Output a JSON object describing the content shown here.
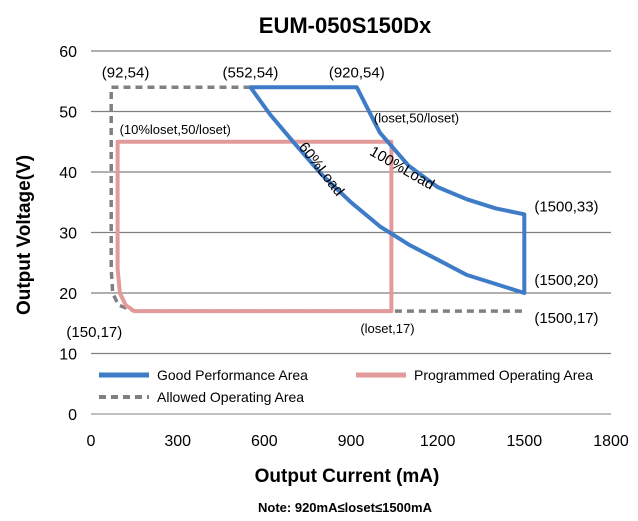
{
  "chart_data": {
    "type": "line",
    "title": "EUM-050S150Dx",
    "xlabel": "Output Current (mA)",
    "ylabel": "Output Voltage(V)",
    "xlim": [
      0,
      1800
    ],
    "ylim": [
      0,
      60
    ],
    "x_ticks": [
      0,
      300,
      600,
      900,
      1200,
      1500,
      1800
    ],
    "y_ticks": [
      0,
      10,
      20,
      30,
      40,
      50,
      60
    ],
    "grid": "horizontal",
    "legend_position": "bottom",
    "series": [
      {
        "name": "Good Performance Area",
        "color": "#3f7cc7",
        "style": "solid",
        "points": [
          [
            552,
            54
          ],
          [
            920,
            54
          ],
          [
            1000,
            46.5
          ],
          [
            1100,
            41
          ],
          [
            1200,
            37.5
          ],
          [
            1300,
            35.5
          ],
          [
            1400,
            34
          ],
          [
            1500,
            33
          ],
          [
            1500,
            20
          ],
          [
            1400,
            21.5
          ],
          [
            1300,
            23
          ],
          [
            1200,
            25.5
          ],
          [
            1100,
            28
          ],
          [
            1000,
            31
          ],
          [
            900,
            35
          ],
          [
            800,
            39.5
          ],
          [
            700,
            45
          ],
          [
            620,
            49.5
          ],
          [
            552,
            54
          ]
        ]
      },
      {
        "name": "Programmed Operating Area",
        "color": "#e29a9a",
        "style": "solid",
        "points": [
          [
            92,
            45
          ],
          [
            1040,
            45
          ],
          [
            1040,
            17
          ],
          [
            150,
            17
          ],
          [
            120,
            18
          ],
          [
            100,
            20
          ],
          [
            92,
            24
          ],
          [
            92,
            45
          ]
        ]
      },
      {
        "name": "Allowed Operating Area",
        "color": "#808080",
        "style": "dashed",
        "points": [
          [
            552,
            54
          ],
          [
            92,
            54
          ],
          [
            70,
            54
          ],
          [
            70,
            24
          ],
          [
            75,
            20
          ],
          [
            95,
            18
          ],
          [
            150,
            17
          ],
          [
            1500,
            17
          ]
        ]
      }
    ],
    "annotations": [
      {
        "text": "(92,54)",
        "x": 92,
        "y": 54
      },
      {
        "text": "(552,54)",
        "x": 552,
        "y": 54
      },
      {
        "text": "(920,54)",
        "x": 920,
        "y": 54
      },
      {
        "text": "(10%loset,50/loset)",
        "x": 92,
        "y": 45
      },
      {
        "text": "(loset,50/loset)",
        "x": 1000,
        "y": 46.5
      },
      {
        "text": "100%Load",
        "x": 1200,
        "y": 37.5
      },
      {
        "text": "60%Load",
        "x": 750,
        "y": 40
      },
      {
        "text": "(1500,33)",
        "x": 1500,
        "y": 33
      },
      {
        "text": "(1500,20)",
        "x": 1500,
        "y": 20
      },
      {
        "text": "(1500,17)",
        "x": 1500,
        "y": 17
      },
      {
        "text": "(150,17)",
        "x": 150,
        "y": 17
      },
      {
        "text": "(loset,17)",
        "x": 1040,
        "y": 17
      }
    ],
    "note": "Note:  920mA≤loset≤1500mA"
  }
}
